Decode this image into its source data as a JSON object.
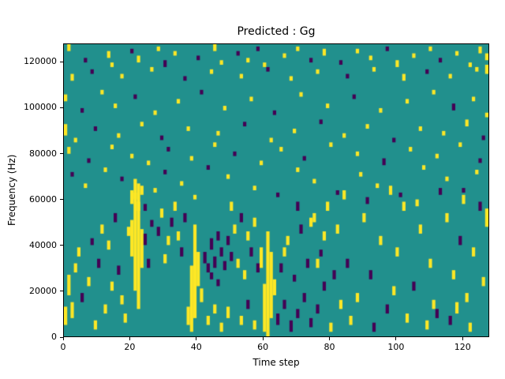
{
  "chart_data": {
    "type": "heatmap",
    "title": "Predicted : Gg",
    "xlabel": "Time step",
    "ylabel": "Frequency (Hz)",
    "xlim": [
      0,
      128
    ],
    "ylim": [
      0,
      128000
    ],
    "x_ticks": [
      0,
      20,
      40,
      60,
      80,
      100,
      120
    ],
    "y_ticks": [
      0,
      20000,
      40000,
      60000,
      80000,
      100000,
      120000
    ],
    "grid": false,
    "bins": {
      "time": 128,
      "freq": 128,
      "freq_bin_hz": 1000
    },
    "colormap": {
      "background_mid": "#21908d",
      "high_Y": "#fde725",
      "low_P": "#440154"
    },
    "runs_format": "[time_bin, freq_bin_low, freq_bin_high, value] ; value Y=high(yellow) P=low(purple) ; all other cells = mid(teal)",
    "runs": [
      [
        1,
        125,
        127,
        "Y"
      ],
      [
        6,
        120,
        121,
        "P"
      ],
      [
        13,
        122,
        124,
        "Y"
      ],
      [
        14,
        118,
        119,
        "Y"
      ],
      [
        20,
        124,
        125,
        "P"
      ],
      [
        22,
        120,
        122,
        "Y"
      ],
      [
        28,
        125,
        126,
        "Y"
      ],
      [
        30,
        118,
        120,
        "P"
      ],
      [
        33,
        123,
        124,
        "Y"
      ],
      [
        40,
        121,
        122,
        "P"
      ],
      [
        45,
        125,
        127,
        "Y"
      ],
      [
        47,
        119,
        120,
        "Y"
      ],
      [
        52,
        123,
        124,
        "P"
      ],
      [
        55,
        120,
        121,
        "Y"
      ],
      [
        58,
        125,
        126,
        "P"
      ],
      [
        60,
        118,
        119,
        "Y"
      ],
      [
        66,
        122,
        123,
        "Y"
      ],
      [
        70,
        125,
        126,
        "Y"
      ],
      [
        74,
        120,
        121,
        "P"
      ],
      [
        78,
        123,
        125,
        "Y"
      ],
      [
        83,
        119,
        120,
        "P"
      ],
      [
        88,
        124,
        125,
        "Y"
      ],
      [
        92,
        121,
        122,
        "Y"
      ],
      [
        97,
        125,
        126,
        "P"
      ],
      [
        100,
        118,
        120,
        "Y"
      ],
      [
        105,
        122,
        123,
        "Y"
      ],
      [
        110,
        125,
        126,
        "Y"
      ],
      [
        113,
        120,
        121,
        "P"
      ],
      [
        118,
        123,
        124,
        "Y"
      ],
      [
        122,
        118,
        119,
        "Y"
      ],
      [
        125,
        124,
        126,
        "Y"
      ],
      [
        127,
        121,
        123,
        "Y"
      ],
      [
        2,
        112,
        114,
        "Y"
      ],
      [
        8,
        115,
        116,
        "P"
      ],
      [
        17,
        113,
        114,
        "Y"
      ],
      [
        26,
        116,
        117,
        "Y"
      ],
      [
        36,
        112,
        113,
        "P"
      ],
      [
        44,
        115,
        116,
        "Y"
      ],
      [
        53,
        113,
        114,
        "Y"
      ],
      [
        61,
        116,
        117,
        "P"
      ],
      [
        68,
        112,
        113,
        "Y"
      ],
      [
        76,
        115,
        116,
        "Y"
      ],
      [
        85,
        113,
        114,
        "P"
      ],
      [
        93,
        116,
        117,
        "Y"
      ],
      [
        102,
        112,
        114,
        "Y"
      ],
      [
        109,
        115,
        116,
        "P"
      ],
      [
        116,
        113,
        114,
        "Y"
      ],
      [
        124,
        116,
        117,
        "Y"
      ],
      [
        127,
        115,
        118,
        "Y"
      ],
      [
        0,
        103,
        105,
        "Y"
      ],
      [
        5,
        98,
        99,
        "P"
      ],
      [
        11,
        106,
        107,
        "Y"
      ],
      [
        15,
        100,
        101,
        "Y"
      ],
      [
        21,
        104,
        105,
        "P"
      ],
      [
        27,
        97,
        98,
        "Y"
      ],
      [
        34,
        102,
        103,
        "Y"
      ],
      [
        41,
        106,
        107,
        "P"
      ],
      [
        48,
        99,
        100,
        "Y"
      ],
      [
        56,
        103,
        104,
        "Y"
      ],
      [
        63,
        97,
        98,
        "P"
      ],
      [
        71,
        105,
        106,
        "Y"
      ],
      [
        79,
        100,
        101,
        "Y"
      ],
      [
        87,
        104,
        105,
        "P"
      ],
      [
        95,
        98,
        99,
        "Y"
      ],
      [
        103,
        102,
        103,
        "Y"
      ],
      [
        111,
        106,
        107,
        "Y"
      ],
      [
        117,
        99,
        101,
        "P"
      ],
      [
        123,
        103,
        104,
        "Y"
      ],
      [
        127,
        96,
        97,
        "Y"
      ],
      [
        0,
        88,
        92,
        "Y"
      ],
      [
        3,
        85,
        86,
        "Y"
      ],
      [
        9,
        90,
        91,
        "P"
      ],
      [
        16,
        87,
        88,
        "Y"
      ],
      [
        23,
        92,
        93,
        "Y"
      ],
      [
        29,
        86,
        87,
        "P"
      ],
      [
        37,
        90,
        91,
        "Y"
      ],
      [
        46,
        88,
        89,
        "Y"
      ],
      [
        54,
        92,
        93,
        "P"
      ],
      [
        62,
        85,
        86,
        "Y"
      ],
      [
        69,
        89,
        90,
        "Y"
      ],
      [
        77,
        93,
        94,
        "P"
      ],
      [
        84,
        87,
        88,
        "Y"
      ],
      [
        91,
        91,
        92,
        "Y"
      ],
      [
        99,
        85,
        86,
        "P"
      ],
      [
        107,
        90,
        91,
        "Y"
      ],
      [
        114,
        88,
        89,
        "Y"
      ],
      [
        121,
        92,
        94,
        "Y"
      ],
      [
        126,
        86,
        87,
        "P"
      ],
      [
        1,
        80,
        82,
        "Y"
      ],
      [
        7,
        76,
        77,
        "P"
      ],
      [
        14,
        82,
        83,
        "Y"
      ],
      [
        20,
        78,
        79,
        "Y"
      ],
      [
        25,
        75,
        76,
        "Y"
      ],
      [
        31,
        81,
        82,
        "P"
      ],
      [
        38,
        77,
        78,
        "Y"
      ],
      [
        45,
        83,
        84,
        "Y"
      ],
      [
        51,
        79,
        80,
        "P"
      ],
      [
        59,
        75,
        76,
        "Y"
      ],
      [
        65,
        81,
        82,
        "Y"
      ],
      [
        72,
        77,
        78,
        "P"
      ],
      [
        80,
        83,
        84,
        "Y"
      ],
      [
        88,
        79,
        80,
        "Y"
      ],
      [
        96,
        75,
        77,
        "P"
      ],
      [
        104,
        81,
        82,
        "Y"
      ],
      [
        112,
        78,
        79,
        "Y"
      ],
      [
        119,
        83,
        84,
        "Y"
      ],
      [
        125,
        76,
        77,
        "P"
      ],
      [
        2,
        70,
        71,
        "P"
      ],
      [
        6,
        65,
        66,
        "Y"
      ],
      [
        12,
        72,
        73,
        "Y"
      ],
      [
        17,
        68,
        69,
        "P"
      ],
      [
        20,
        58,
        63,
        "Y"
      ],
      [
        21,
        60,
        68,
        "Y"
      ],
      [
        22,
        55,
        66,
        "Y"
      ],
      [
        23,
        62,
        65,
        "Y"
      ],
      [
        27,
        63,
        64,
        "Y"
      ],
      [
        30,
        71,
        72,
        "P"
      ],
      [
        35,
        66,
        67,
        "Y"
      ],
      [
        39,
        60,
        61,
        "Y"
      ],
      [
        43,
        73,
        74,
        "P"
      ],
      [
        49,
        69,
        70,
        "Y"
      ],
      [
        57,
        64,
        65,
        "Y"
      ],
      [
        64,
        61,
        62,
        "P"
      ],
      [
        70,
        72,
        73,
        "Y"
      ],
      [
        75,
        67,
        68,
        "Y"
      ],
      [
        82,
        62,
        63,
        "P"
      ],
      [
        89,
        70,
        71,
        "Y"
      ],
      [
        94,
        65,
        66,
        "Y"
      ],
      [
        101,
        61,
        62,
        "P"
      ],
      [
        108,
        73,
        74,
        "Y"
      ],
      [
        115,
        68,
        69,
        "Y"
      ],
      [
        120,
        63,
        64,
        "P"
      ],
      [
        124,
        71,
        72,
        "Y"
      ],
      [
        20,
        35,
        50,
        "Y"
      ],
      [
        21,
        20,
        62,
        "Y"
      ],
      [
        22,
        12,
        58,
        "Y"
      ],
      [
        23,
        30,
        46,
        "Y"
      ],
      [
        24,
        40,
        44,
        "P"
      ],
      [
        24,
        55,
        57,
        "P"
      ],
      [
        25,
        30,
        33,
        "P"
      ],
      [
        26,
        48,
        50,
        "P"
      ],
      [
        42,
        32,
        36,
        "P"
      ],
      [
        43,
        28,
        31,
        "P"
      ],
      [
        44,
        38,
        42,
        "P"
      ],
      [
        45,
        30,
        34,
        "P"
      ],
      [
        46,
        42,
        45,
        "P"
      ],
      [
        47,
        35,
        38,
        "P"
      ],
      [
        48,
        29,
        32,
        "P"
      ],
      [
        49,
        40,
        43,
        "P"
      ],
      [
        50,
        33,
        36,
        "P"
      ],
      [
        44,
        25,
        27,
        "P"
      ],
      [
        46,
        22,
        24,
        "P"
      ],
      [
        37,
        5,
        12,
        "Y"
      ],
      [
        38,
        2,
        30,
        "Y"
      ],
      [
        39,
        8,
        48,
        "Y"
      ],
      [
        40,
        22,
        36,
        "Y"
      ],
      [
        41,
        15,
        20,
        "Y"
      ],
      [
        59,
        30,
        38,
        "Y"
      ],
      [
        60,
        2,
        22,
        "Y"
      ],
      [
        61,
        0,
        45,
        "Y"
      ],
      [
        62,
        8,
        36,
        "Y"
      ],
      [
        63,
        18,
        24,
        "Y"
      ],
      [
        64,
        5,
        9,
        "P"
      ],
      [
        65,
        28,
        31,
        "P"
      ],
      [
        66,
        12,
        15,
        "P"
      ],
      [
        68,
        2,
        6,
        "P"
      ],
      [
        69,
        24,
        26,
        "P"
      ],
      [
        70,
        8,
        11,
        "P"
      ],
      [
        72,
        15,
        18,
        "P"
      ],
      [
        73,
        30,
        33,
        "P"
      ],
      [
        74,
        4,
        7,
        "P"
      ],
      [
        76,
        10,
        13,
        "P"
      ],
      [
        77,
        35,
        37,
        "P"
      ],
      [
        78,
        20,
        23,
        "P"
      ],
      [
        0,
        5,
        12,
        "Y"
      ],
      [
        1,
        18,
        26,
        "Y"
      ],
      [
        2,
        8,
        14,
        "Y"
      ],
      [
        3,
        28,
        31,
        "Y"
      ],
      [
        4,
        35,
        38,
        "Y"
      ],
      [
        5,
        15,
        18,
        "P"
      ],
      [
        7,
        22,
        25,
        "Y"
      ],
      [
        8,
        40,
        42,
        "P"
      ],
      [
        9,
        3,
        6,
        "Y"
      ],
      [
        10,
        30,
        33,
        "P"
      ],
      [
        11,
        45,
        48,
        "Y"
      ],
      [
        12,
        10,
        13,
        "Y"
      ],
      [
        13,
        38,
        41,
        "Y"
      ],
      [
        14,
        20,
        23,
        "Y"
      ],
      [
        15,
        50,
        53,
        "P"
      ],
      [
        16,
        27,
        30,
        "P"
      ],
      [
        17,
        14,
        17,
        "Y"
      ],
      [
        18,
        6,
        9,
        "Y"
      ],
      [
        19,
        44,
        47,
        "Y"
      ],
      [
        28,
        44,
        47,
        "P"
      ],
      [
        29,
        52,
        55,
        "Y"
      ],
      [
        30,
        32,
        35,
        "Y"
      ],
      [
        31,
        40,
        43,
        "Y"
      ],
      [
        32,
        48,
        51,
        "P"
      ],
      [
        33,
        55,
        58,
        "Y"
      ],
      [
        34,
        42,
        45,
        "Y"
      ],
      [
        35,
        35,
        38,
        "P"
      ],
      [
        36,
        50,
        53,
        "P"
      ],
      [
        43,
        5,
        8,
        "Y"
      ],
      [
        45,
        10,
        13,
        "Y"
      ],
      [
        47,
        2,
        5,
        "Y"
      ],
      [
        49,
        8,
        12,
        "Y"
      ],
      [
        50,
        55,
        58,
        "Y"
      ],
      [
        51,
        45,
        48,
        "Y"
      ],
      [
        52,
        30,
        33,
        "Y"
      ],
      [
        53,
        5,
        8,
        "Y"
      ],
      [
        53,
        50,
        53,
        "P"
      ],
      [
        54,
        25,
        28,
        "Y"
      ],
      [
        55,
        12,
        15,
        "P"
      ],
      [
        55,
        42,
        45,
        "Y"
      ],
      [
        56,
        35,
        38,
        "P"
      ],
      [
        57,
        3,
        6,
        "Y"
      ],
      [
        57,
        48,
        51,
        "Y"
      ],
      [
        58,
        28,
        31,
        "P"
      ],
      [
        66,
        35,
        38,
        "Y"
      ],
      [
        67,
        40,
        43,
        "Y"
      ],
      [
        70,
        55,
        58,
        "P"
      ],
      [
        71,
        45,
        48,
        "P"
      ],
      [
        74,
        48,
        51,
        "Y"
      ],
      [
        75,
        50,
        53,
        "Y"
      ],
      [
        76,
        30,
        33,
        "Y"
      ],
      [
        78,
        42,
        45,
        "Y"
      ],
      [
        79,
        55,
        58,
        "Y"
      ],
      [
        80,
        2,
        5,
        "Y"
      ],
      [
        81,
        25,
        28,
        "P"
      ],
      [
        82,
        45,
        48,
        "Y"
      ],
      [
        83,
        12,
        15,
        "Y"
      ],
      [
        84,
        60,
        63,
        "Y"
      ],
      [
        85,
        30,
        33,
        "P"
      ],
      [
        86,
        5,
        8,
        "Y"
      ],
      [
        88,
        15,
        18,
        "Y"
      ],
      [
        90,
        50,
        53,
        "Y"
      ],
      [
        91,
        58,
        60,
        "P"
      ],
      [
        92,
        25,
        28,
        "P"
      ],
      [
        93,
        2,
        5,
        "P"
      ],
      [
        95,
        40,
        43,
        "Y"
      ],
      [
        97,
        10,
        13,
        "P"
      ],
      [
        98,
        62,
        65,
        "Y"
      ],
      [
        99,
        18,
        21,
        "Y"
      ],
      [
        100,
        35,
        38,
        "Y"
      ],
      [
        102,
        55,
        58,
        "Y"
      ],
      [
        103,
        6,
        9,
        "Y"
      ],
      [
        105,
        20,
        23,
        "P"
      ],
      [
        106,
        57,
        59,
        "Y"
      ],
      [
        107,
        45,
        48,
        "Y"
      ],
      [
        109,
        3,
        6,
        "Y"
      ],
      [
        110,
        30,
        33,
        "Y"
      ],
      [
        111,
        12,
        15,
        "Y"
      ],
      [
        112,
        8,
        11,
        "P"
      ],
      [
        113,
        62,
        64,
        "P"
      ],
      [
        115,
        50,
        53,
        "Y"
      ],
      [
        116,
        5,
        8,
        "P"
      ],
      [
        117,
        25,
        28,
        "Y"
      ],
      [
        118,
        10,
        14,
        "Y"
      ],
      [
        119,
        40,
        43,
        "P"
      ],
      [
        120,
        58,
        61,
        "Y"
      ],
      [
        121,
        15,
        18,
        "Y"
      ],
      [
        122,
        2,
        5,
        "Y"
      ],
      [
        123,
        35,
        38,
        "Y"
      ],
      [
        125,
        55,
        58,
        "P"
      ],
      [
        126,
        22,
        25,
        "Y"
      ],
      [
        127,
        48,
        55,
        "Y"
      ]
    ]
  }
}
